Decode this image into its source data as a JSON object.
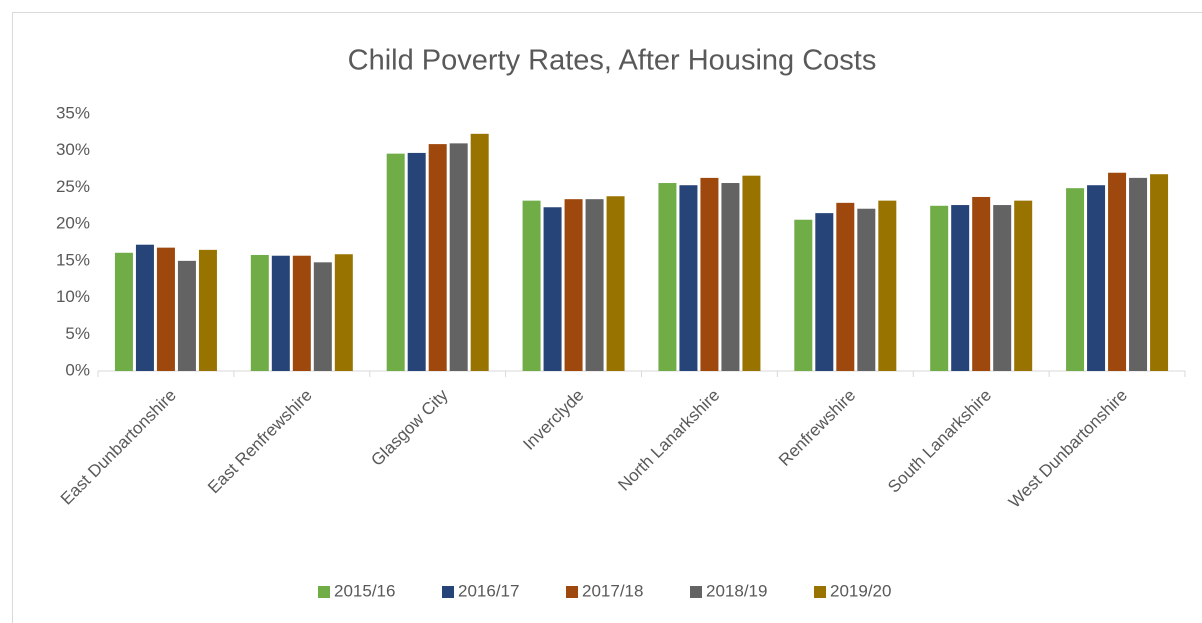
{
  "chart_data": {
    "type": "bar",
    "title": "Child Poverty Rates, After Housing Costs",
    "categories": [
      "East Dunbartonshire",
      "East Renfrewshire",
      "Glasgow City",
      "Inverclyde",
      "North Lanarkshire",
      "Renfrewshire",
      "South Lanarkshire",
      "West Dunbartonshire"
    ],
    "series": [
      {
        "name": "2015/16",
        "color": "#70ad47",
        "values": [
          16.1,
          15.8,
          29.6,
          23.2,
          25.6,
          20.6,
          22.5,
          24.9
        ]
      },
      {
        "name": "2016/17",
        "color": "#264478",
        "values": [
          17.2,
          15.7,
          29.7,
          22.3,
          25.3,
          21.5,
          22.6,
          25.3
        ]
      },
      {
        "name": "2017/18",
        "color": "#9e480e",
        "values": [
          16.8,
          15.7,
          30.9,
          23.4,
          26.3,
          22.9,
          23.7,
          27.0
        ]
      },
      {
        "name": "2018/19",
        "color": "#636363",
        "values": [
          15.0,
          14.8,
          31.0,
          23.4,
          25.6,
          22.1,
          22.6,
          26.3
        ]
      },
      {
        "name": "2019/20",
        "color": "#997300",
        "values": [
          16.5,
          15.9,
          32.3,
          23.8,
          26.6,
          23.2,
          23.2,
          26.8
        ]
      }
    ],
    "ylim": [
      0,
      35
    ],
    "yticks": [
      {
        "value": 0,
        "label": "0%"
      },
      {
        "value": 5,
        "label": "5%"
      },
      {
        "value": 10,
        "label": "10%"
      },
      {
        "value": 15,
        "label": "15%"
      },
      {
        "value": 20,
        "label": "20%"
      },
      {
        "value": 25,
        "label": "25%"
      },
      {
        "value": 30,
        "label": "30%"
      },
      {
        "value": 35,
        "label": "35%"
      }
    ],
    "grid": false,
    "legend": "bottom"
  }
}
